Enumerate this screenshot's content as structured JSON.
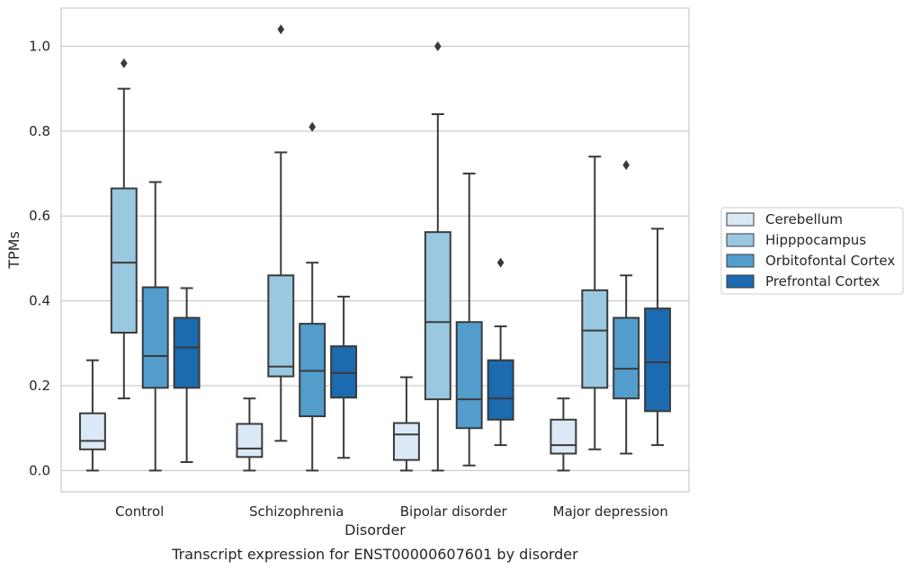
{
  "caption": "Transcript expression for ENST00000607601 by disorder",
  "chart_data": {
    "type": "box",
    "title": "",
    "xlabel": "Disorder",
    "ylabel": "TPMs",
    "categories": [
      "Control",
      "Schizophrenia",
      "Bipolar disorder",
      "Major depression"
    ],
    "ylim": [
      -0.05,
      1.09
    ],
    "yticks": [
      0.0,
      0.2,
      0.4,
      0.6,
      0.8,
      1.0
    ],
    "ytick_labels": [
      "0.0",
      "0.2",
      "0.4",
      "0.6",
      "0.8",
      "1.0"
    ],
    "grid": true,
    "legend_position": "right",
    "series": [
      {
        "name": "Cerebellum",
        "color": "#dbe9f6",
        "boxes": [
          {
            "whisker_low": 0.0,
            "q1": 0.05,
            "median": 0.07,
            "q3": 0.135,
            "whisker_high": 0.26,
            "outliers": []
          },
          {
            "whisker_low": 0.0,
            "q1": 0.032,
            "median": 0.052,
            "q3": 0.11,
            "whisker_high": 0.17,
            "outliers": []
          },
          {
            "whisker_low": 0.0,
            "q1": 0.025,
            "median": 0.085,
            "q3": 0.112,
            "whisker_high": 0.22,
            "outliers": []
          },
          {
            "whisker_low": 0.0,
            "q1": 0.04,
            "median": 0.06,
            "q3": 0.12,
            "whisker_high": 0.17,
            "outliers": []
          }
        ]
      },
      {
        "name": "Hipppocampus",
        "color": "#9ac8e0",
        "boxes": [
          {
            "whisker_low": 0.17,
            "q1": 0.325,
            "median": 0.49,
            "q3": 0.665,
            "whisker_high": 0.9,
            "outliers": [
              0.96
            ]
          },
          {
            "whisker_low": 0.07,
            "q1": 0.222,
            "median": 0.245,
            "q3": 0.46,
            "whisker_high": 0.75,
            "outliers": [
              1.04
            ]
          },
          {
            "whisker_low": 0.0,
            "q1": 0.168,
            "median": 0.35,
            "q3": 0.562,
            "whisker_high": 0.84,
            "outliers": [
              1.0
            ]
          },
          {
            "whisker_low": 0.05,
            "q1": 0.195,
            "median": 0.33,
            "q3": 0.425,
            "whisker_high": 0.74,
            "outliers": []
          }
        ]
      },
      {
        "name": "Orbitofontal Cortex",
        "color": "#529dcc",
        "boxes": [
          {
            "whisker_low": 0.0,
            "q1": 0.195,
            "median": 0.27,
            "q3": 0.432,
            "whisker_high": 0.68,
            "outliers": []
          },
          {
            "whisker_low": 0.0,
            "q1": 0.128,
            "median": 0.235,
            "q3": 0.346,
            "whisker_high": 0.49,
            "outliers": [
              0.81
            ]
          },
          {
            "whisker_low": 0.012,
            "q1": 0.1,
            "median": 0.168,
            "q3": 0.35,
            "whisker_high": 0.7,
            "outliers": []
          },
          {
            "whisker_low": 0.04,
            "q1": 0.17,
            "median": 0.24,
            "q3": 0.36,
            "whisker_high": 0.46,
            "outliers": [
              0.72
            ]
          }
        ]
      },
      {
        "name": "Prefrontal Cortex",
        "color": "#1c6aaf",
        "boxes": [
          {
            "whisker_low": 0.02,
            "q1": 0.195,
            "median": 0.29,
            "q3": 0.36,
            "whisker_high": 0.43,
            "outliers": []
          },
          {
            "whisker_low": 0.03,
            "q1": 0.172,
            "median": 0.23,
            "q3": 0.293,
            "whisker_high": 0.41,
            "outliers": []
          },
          {
            "whisker_low": 0.06,
            "q1": 0.12,
            "median": 0.17,
            "q3": 0.26,
            "whisker_high": 0.34,
            "outliers": [
              0.49
            ]
          },
          {
            "whisker_low": 0.06,
            "q1": 0.14,
            "median": 0.255,
            "q3": 0.382,
            "whisker_high": 0.57,
            "outliers": []
          }
        ]
      }
    ]
  }
}
